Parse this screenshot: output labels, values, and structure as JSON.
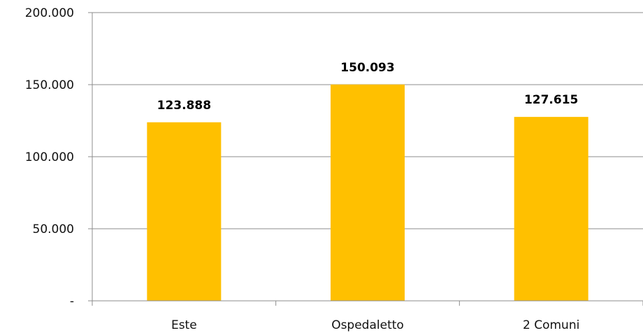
{
  "chart_data": {
    "type": "bar",
    "categories": [
      "Este",
      "Ospedaletto",
      "2 Comuni"
    ],
    "values": [
      123888,
      150093,
      127615
    ],
    "value_labels": [
      "123.888",
      "150.093",
      "127.615"
    ],
    "y_ticks": [
      0,
      50000,
      100000,
      150000,
      200000
    ],
    "y_tick_labels": [
      "-",
      "50.000",
      "100.000",
      "150.000",
      "200.000"
    ],
    "ylim": [
      0,
      200000
    ],
    "grid": true,
    "legend": "none",
    "title": "",
    "xlabel": "",
    "ylabel": "",
    "bar_color": "#FFC000",
    "grid_color": "#8C8C8C"
  }
}
